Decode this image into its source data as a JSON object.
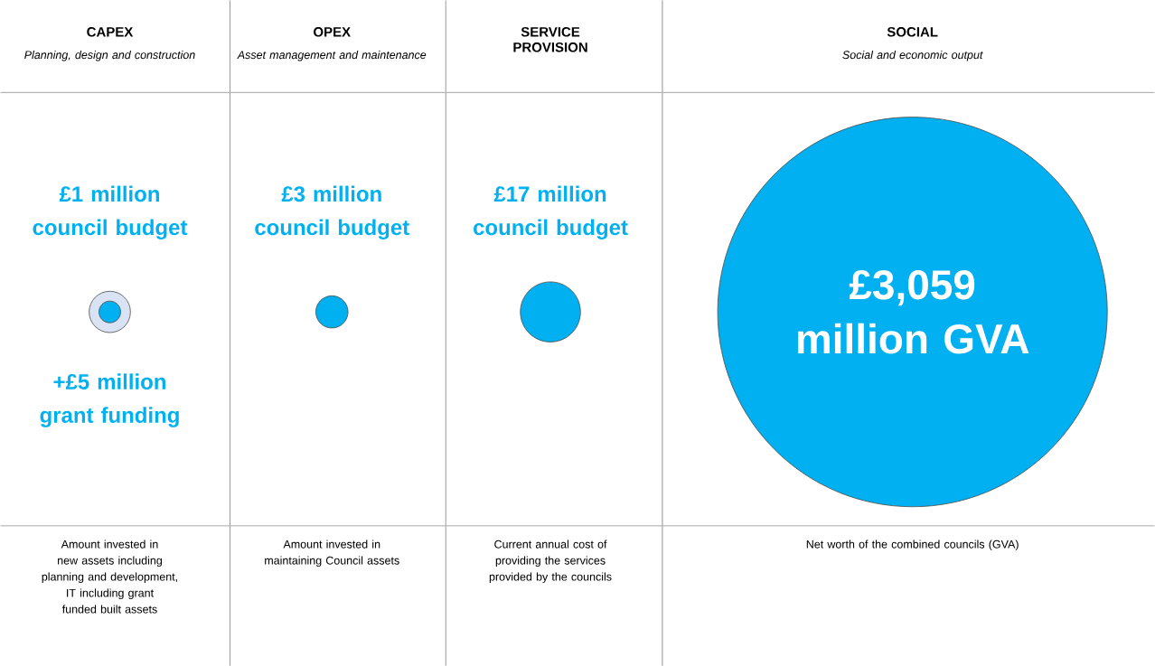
{
  "chart_data": {
    "type": "other",
    "categories": [
      "CAPEX",
      "OPEX",
      "SERVICE PROVISION",
      "SOCIAL"
    ],
    "series": [
      {
        "color": "#00b0f0",
        "values": [
          1,
          3,
          17,
          null
        ],
        "value_labels": [
          "£1 million council budget",
          "£3 million council budget",
          "£17 million council budget",
          null
        ]
      },
      {
        "color": "#dae3f3",
        "values": [
          5,
          null,
          null,
          null
        ],
        "value_labels": [
          "+£5 million grant funding",
          null,
          null,
          null
        ]
      },
      {
        "color": "#00b0f0",
        "values": [
          null,
          null,
          null,
          3059
        ],
        "value_labels": [
          null,
          null,
          null,
          "£3,059 million GVA"
        ]
      }
    ],
    "annotations": [
      "Planning, design and construction",
      "Asset management and maintenance",
      "Social and economic output",
      "Amount invested in new assets including planning and development, IT including grant funded built assets",
      "Amount invested in maintaining Council assets",
      "Current annual cost of providing the services provided by the councils",
      "Net worth of the combined councils (GVA)"
    ]
  }
}
